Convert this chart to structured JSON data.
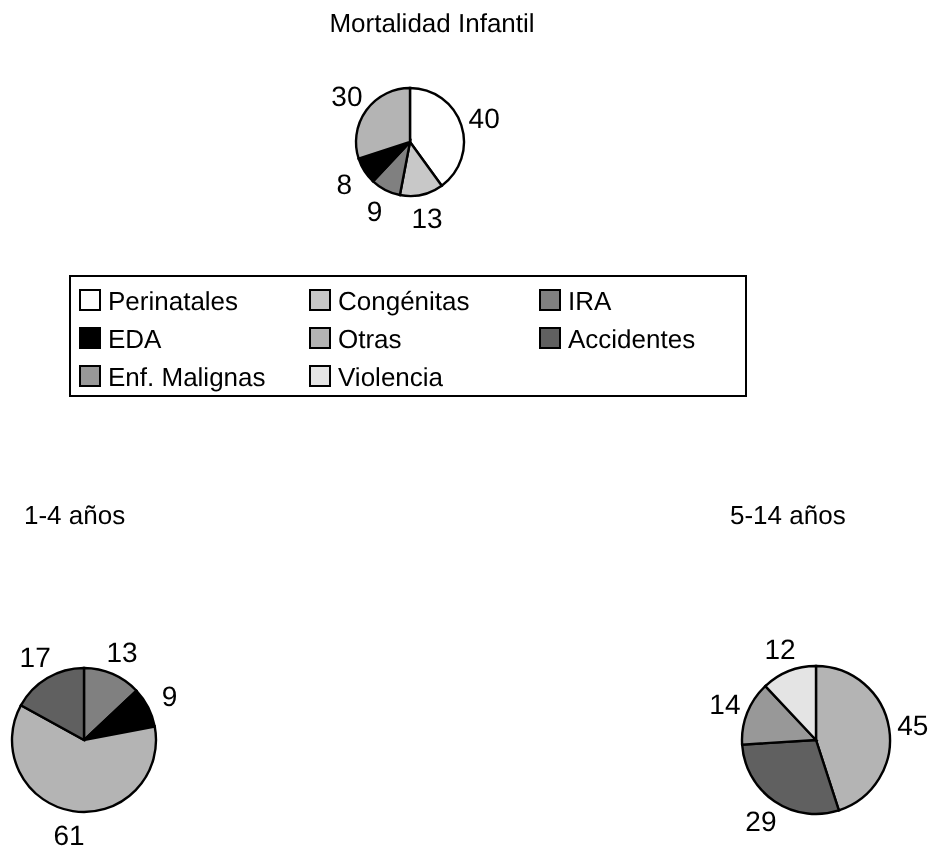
{
  "chart_data": [
    {
      "type": "pie",
      "title": "Mortalidad Infantil",
      "categories": [
        "Perinatales",
        "Congénitas",
        "IRA",
        "EDA",
        "Otras",
        "Accidentes",
        "Enf. Malignas",
        "Violencia"
      ],
      "values": [
        40,
        13,
        9,
        8,
        30,
        null,
        null,
        null
      ],
      "colors": [
        "#ffffff",
        "#c8c8c8",
        "#808080",
        "#000000",
        "#b4b4b4",
        "#606060",
        "#989898",
        "#e4e4e4"
      ],
      "data_labels": true,
      "legend": "bottom"
    },
    {
      "type": "pie",
      "title": "1-4 años",
      "categories": [
        null,
        null,
        null,
        null,
        null,
        null,
        null,
        null
      ],
      "values": [
        null,
        null,
        13,
        9,
        61,
        17,
        null,
        null
      ],
      "colors": [
        "#ffffff",
        "#c8c8c8",
        "#808080",
        "#000000",
        "#b4b4b4",
        "#606060",
        "#989898",
        "#e4e4e4"
      ],
      "data_labels": true
    },
    {
      "type": "pie",
      "title": "5-14 años",
      "categories": [
        null,
        null,
        null,
        null,
        null,
        null,
        null,
        null
      ],
      "values": [
        null,
        null,
        null,
        null,
        45,
        29,
        14,
        12
      ],
      "colors": [
        "#ffffff",
        "#c8c8c8",
        "#808080",
        "#000000",
        "#b4b4b4",
        "#606060",
        "#989898",
        "#e4e4e4"
      ],
      "data_labels": true
    }
  ]
}
